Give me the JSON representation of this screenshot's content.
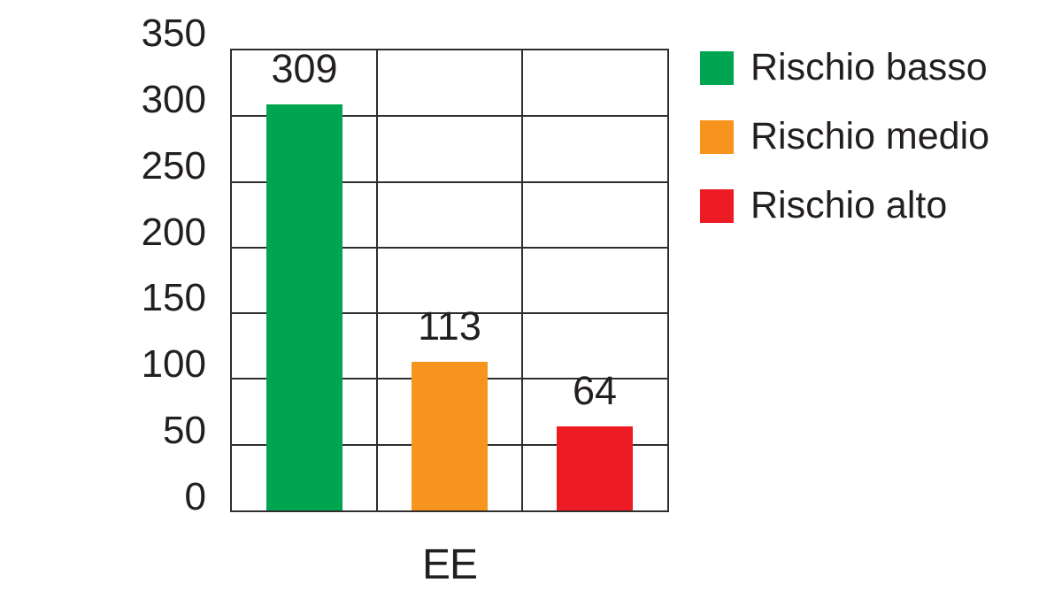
{
  "chart_data": {
    "type": "bar",
    "title": "",
    "xlabel": "EE",
    "ylabel": "",
    "categories": [
      "EE"
    ],
    "series": [
      {
        "name": "Rischio basso",
        "value": 309,
        "color": "#00A551"
      },
      {
        "name": "Rischio medio",
        "value": 113,
        "color": "#F7941E"
      },
      {
        "name": "Rischio alto",
        "value": 64,
        "color": "#ED1C24"
      }
    ],
    "value_labels": [
      "309",
      "113",
      "64"
    ],
    "ylim": [
      0,
      350
    ],
    "ytick_step": 50,
    "yticks": [
      0,
      50,
      100,
      150,
      200,
      250,
      300,
      350
    ],
    "grid": true,
    "legend_position": "right",
    "colors": {
      "line": "#2e2e2d",
      "text": "#231F20",
      "background": "#FFFFFF"
    }
  }
}
